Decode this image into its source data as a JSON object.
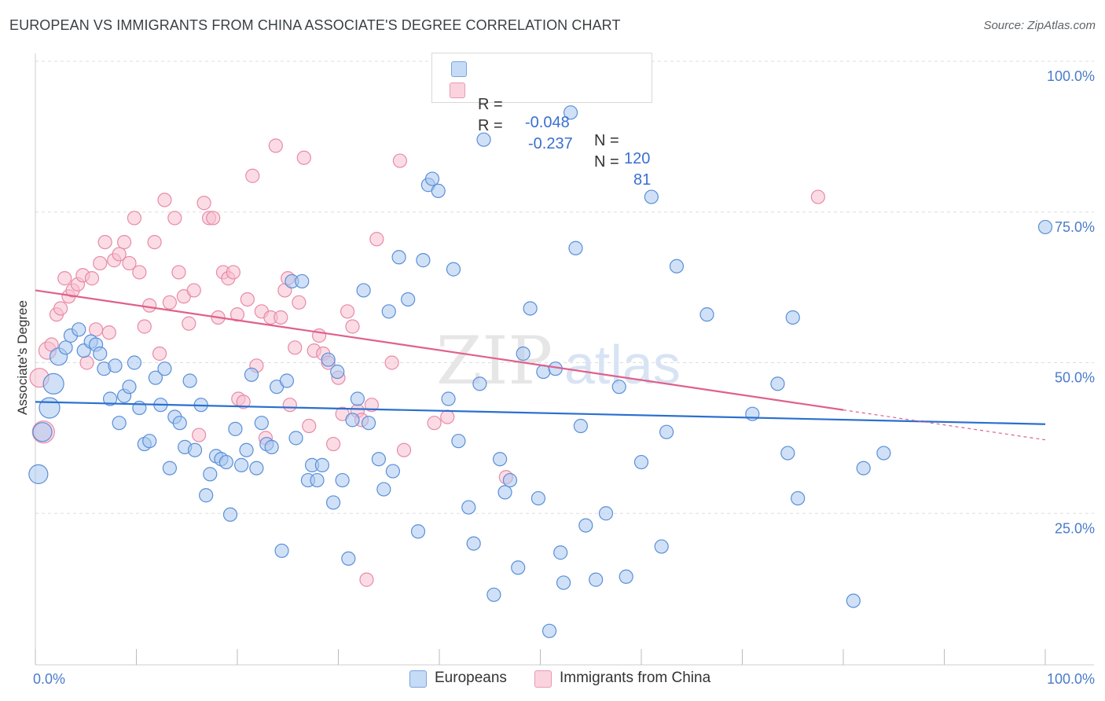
{
  "title": "EUROPEAN VS IMMIGRANTS FROM CHINA ASSOCIATE'S DEGREE CORRELATION CHART",
  "source": "Source: ZipAtlas.com",
  "legend": {
    "r_label": "R =",
    "n_label": "N =",
    "rows": [
      {
        "r": "-0.048",
        "n": "120",
        "color": "#aac8f0"
      },
      {
        "r": "-0.237",
        "n": "81",
        "color": "#f8c0d0"
      }
    ]
  },
  "bottom_legend": [
    {
      "label": "Europeans"
    },
    {
      "label": "Immigrants from China"
    }
  ],
  "watermark": {
    "zip": "ZIP",
    "atlas": "atlas"
  },
  "chart_data": {
    "type": "scatter",
    "title": "EUROPEAN VS IMMIGRANTS FROM CHINA ASSOCIATE'S DEGREE CORRELATION CHART",
    "xlabel": "",
    "ylabel": "Associate's Degree",
    "xlim": [
      0,
      100
    ],
    "ylim": [
      0,
      100
    ],
    "x_tick_labels": [
      "0.0%",
      "100.0%"
    ],
    "y_tick_labels": [
      "100.0%",
      "75.0%",
      "50.0%",
      "25.0%"
    ],
    "y_ticks": [
      100,
      75,
      50,
      25
    ],
    "colors": {
      "europeans": "#5b8fd8",
      "china": "#e87a9a",
      "europeans_line": "#2a6fd0",
      "china_line": "#e0608a"
    },
    "series": [
      {
        "name": "Europeans",
        "r": -0.048,
        "n": 120,
        "trend": {
          "x0": 0,
          "y0": 43.5,
          "x1": 100,
          "y1": 39.8
        },
        "points": [
          [
            0.3,
            31.5
          ],
          [
            0.7,
            38.5
          ],
          [
            1.4,
            42.5
          ],
          [
            1.8,
            46.5
          ],
          [
            2.3,
            51.0
          ],
          [
            3.0,
            52.5
          ],
          [
            3.5,
            54.5
          ],
          [
            4.3,
            55.5
          ],
          [
            4.8,
            52.0
          ],
          [
            5.5,
            53.5
          ],
          [
            6.0,
            53.0
          ],
          [
            6.4,
            51.5
          ],
          [
            6.8,
            49.0
          ],
          [
            7.4,
            44.0
          ],
          [
            7.9,
            49.5
          ],
          [
            8.3,
            40.0
          ],
          [
            8.8,
            44.5
          ],
          [
            9.3,
            46.0
          ],
          [
            9.8,
            50.0
          ],
          [
            10.3,
            42.5
          ],
          [
            10.8,
            36.5
          ],
          [
            11.3,
            37.0
          ],
          [
            11.9,
            47.5
          ],
          [
            12.4,
            43.0
          ],
          [
            12.8,
            49.0
          ],
          [
            13.3,
            32.5
          ],
          [
            13.8,
            41.0
          ],
          [
            14.3,
            40.0
          ],
          [
            14.8,
            36.0
          ],
          [
            15.3,
            47.0
          ],
          [
            15.8,
            35.5
          ],
          [
            16.4,
            43.0
          ],
          [
            16.9,
            28.0
          ],
          [
            17.3,
            31.5
          ],
          [
            17.9,
            34.5
          ],
          [
            18.4,
            34.0
          ],
          [
            18.9,
            33.5
          ],
          [
            19.3,
            24.8
          ],
          [
            19.8,
            39.0
          ],
          [
            20.4,
            33.0
          ],
          [
            20.9,
            35.5
          ],
          [
            21.4,
            48.0
          ],
          [
            21.9,
            32.5
          ],
          [
            22.4,
            40.0
          ],
          [
            22.9,
            36.5
          ],
          [
            23.4,
            36.0
          ],
          [
            23.9,
            46.0
          ],
          [
            24.4,
            18.8
          ],
          [
            24.9,
            47.0
          ],
          [
            25.4,
            63.5
          ],
          [
            25.8,
            37.5
          ],
          [
            26.4,
            63.5
          ],
          [
            27.0,
            30.5
          ],
          [
            27.4,
            33.0
          ],
          [
            27.9,
            30.5
          ],
          [
            28.4,
            33.0
          ],
          [
            29.0,
            50.5
          ],
          [
            29.5,
            26.8
          ],
          [
            29.9,
            48.5
          ],
          [
            30.4,
            30.5
          ],
          [
            31.0,
            17.5
          ],
          [
            31.4,
            40.5
          ],
          [
            31.9,
            44.0
          ],
          [
            32.5,
            62.0
          ],
          [
            33.0,
            40.0
          ],
          [
            34.0,
            34.0
          ],
          [
            34.5,
            29.0
          ],
          [
            35.0,
            58.5
          ],
          [
            35.4,
            32.0
          ],
          [
            36.0,
            67.5
          ],
          [
            36.9,
            60.5
          ],
          [
            37.9,
            22.0
          ],
          [
            38.4,
            67.0
          ],
          [
            38.9,
            79.5
          ],
          [
            39.3,
            80.5
          ],
          [
            39.9,
            78.5
          ],
          [
            40.9,
            44.0
          ],
          [
            41.4,
            65.5
          ],
          [
            41.9,
            37.0
          ],
          [
            42.9,
            26.0
          ],
          [
            43.4,
            20.0
          ],
          [
            44.0,
            46.5
          ],
          [
            44.4,
            87.0
          ],
          [
            45.4,
            11.5
          ],
          [
            46.0,
            34.0
          ],
          [
            46.5,
            28.5
          ],
          [
            47.0,
            30.5
          ],
          [
            47.8,
            16.0
          ],
          [
            48.3,
            51.5
          ],
          [
            49.0,
            59.0
          ],
          [
            49.8,
            27.5
          ],
          [
            50.3,
            48.5
          ],
          [
            50.9,
            5.5
          ],
          [
            51.5,
            49.0
          ],
          [
            52.0,
            18.5
          ],
          [
            52.3,
            13.5
          ],
          [
            53.0,
            91.5
          ],
          [
            53.5,
            69.0
          ],
          [
            54.0,
            39.5
          ],
          [
            54.5,
            23.0
          ],
          [
            55.5,
            14.0
          ],
          [
            56.5,
            25.0
          ],
          [
            57.8,
            46.0
          ],
          [
            58.5,
            14.5
          ],
          [
            60.0,
            33.5
          ],
          [
            61.0,
            77.5
          ],
          [
            62.0,
            19.5
          ],
          [
            62.5,
            38.5
          ],
          [
            63.5,
            66.0
          ],
          [
            66.5,
            58.0
          ],
          [
            71.0,
            41.5
          ],
          [
            73.5,
            46.5
          ],
          [
            74.5,
            35.0
          ],
          [
            75.0,
            57.5
          ],
          [
            75.5,
            27.5
          ],
          [
            81.0,
            10.5
          ],
          [
            82.0,
            32.5
          ],
          [
            84.0,
            35.0
          ],
          [
            100.0,
            72.5
          ]
        ]
      },
      {
        "name": "Immigrants from China",
        "r": -0.237,
        "n": 81,
        "trend": {
          "x0": 0,
          "y0": 62.0,
          "x1": 100,
          "y1": 37.2,
          "solid_until_x": 80
        },
        "points": [
          [
            0.4,
            47.5
          ],
          [
            0.8,
            38.5
          ],
          [
            1.2,
            52.0
          ],
          [
            1.6,
            53.0
          ],
          [
            2.1,
            58.0
          ],
          [
            2.5,
            59.0
          ],
          [
            2.9,
            64.0
          ],
          [
            3.3,
            61.0
          ],
          [
            3.7,
            62.0
          ],
          [
            4.2,
            63.0
          ],
          [
            4.7,
            64.5
          ],
          [
            5.1,
            50.0
          ],
          [
            5.6,
            64.0
          ],
          [
            6.0,
            55.5
          ],
          [
            6.4,
            66.5
          ],
          [
            6.9,
            70.0
          ],
          [
            7.3,
            55.0
          ],
          [
            7.8,
            67.0
          ],
          [
            8.3,
            68.0
          ],
          [
            8.8,
            70.0
          ],
          [
            9.3,
            66.5
          ],
          [
            9.8,
            74.0
          ],
          [
            10.3,
            65.0
          ],
          [
            10.8,
            56.0
          ],
          [
            11.3,
            59.5
          ],
          [
            11.8,
            70.0
          ],
          [
            12.3,
            51.5
          ],
          [
            12.8,
            77.0
          ],
          [
            13.3,
            60.0
          ],
          [
            13.8,
            74.0
          ],
          [
            14.2,
            65.0
          ],
          [
            14.7,
            61.0
          ],
          [
            15.2,
            56.5
          ],
          [
            15.7,
            62.0
          ],
          [
            16.2,
            38.0
          ],
          [
            16.7,
            76.5
          ],
          [
            17.2,
            74.0
          ],
          [
            17.6,
            74.0
          ],
          [
            18.1,
            57.5
          ],
          [
            18.6,
            65.0
          ],
          [
            19.1,
            64.0
          ],
          [
            19.6,
            65.0
          ],
          [
            20.1,
            44.0
          ],
          [
            20.6,
            43.5
          ],
          [
            21.0,
            60.5
          ],
          [
            21.5,
            81.0
          ],
          [
            21.9,
            49.5
          ],
          [
            22.4,
            58.5
          ],
          [
            22.8,
            37.5
          ],
          [
            23.3,
            57.5
          ],
          [
            23.8,
            86.0
          ],
          [
            24.3,
            57.5
          ],
          [
            24.7,
            62.0
          ],
          [
            25.2,
            43.0
          ],
          [
            25.7,
            52.5
          ],
          [
            26.1,
            60.0
          ],
          [
            26.6,
            84.0
          ],
          [
            27.1,
            39.5
          ],
          [
            27.6,
            52.0
          ],
          [
            28.1,
            54.5
          ],
          [
            28.5,
            51.5
          ],
          [
            29.0,
            50.0
          ],
          [
            29.5,
            36.5
          ],
          [
            30.0,
            47.5
          ],
          [
            30.4,
            41.5
          ],
          [
            30.9,
            58.5
          ],
          [
            31.4,
            56.0
          ],
          [
            31.9,
            42.0
          ],
          [
            32.3,
            40.5
          ],
          [
            32.8,
            14.0
          ],
          [
            33.3,
            43.0
          ],
          [
            33.8,
            70.5
          ],
          [
            35.3,
            50.0
          ],
          [
            36.5,
            35.5
          ],
          [
            36.1,
            83.5
          ],
          [
            39.5,
            40.0
          ],
          [
            40.8,
            41.0
          ],
          [
            46.6,
            31.0
          ],
          [
            77.5,
            77.5
          ],
          [
            25.0,
            64.0
          ],
          [
            20.0,
            58.0
          ]
        ]
      }
    ]
  }
}
